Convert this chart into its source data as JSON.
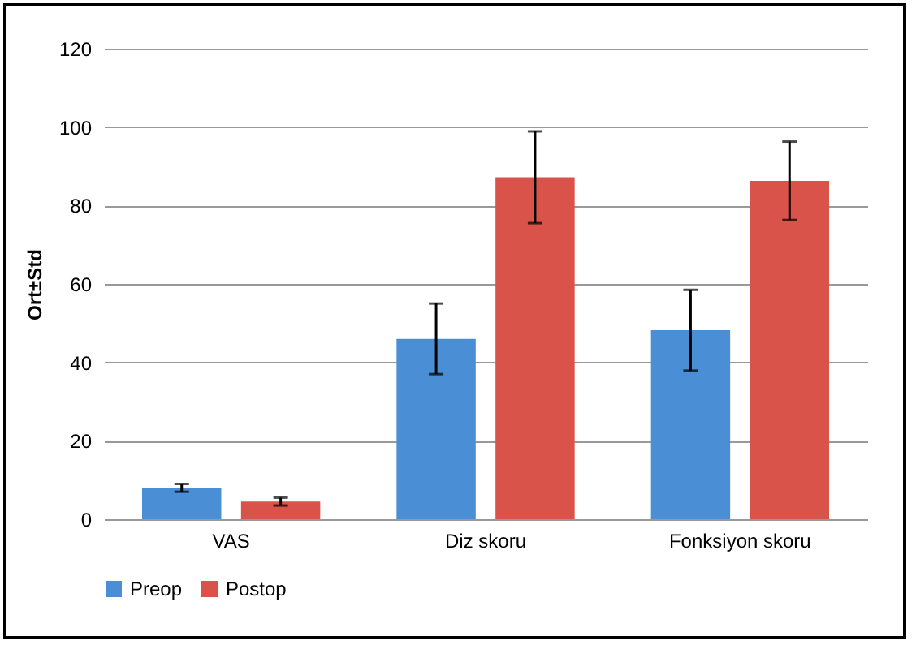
{
  "chart_data": {
    "type": "bar",
    "ylabel": "Ort±Std",
    "categories": [
      "VAS",
      "Diz skoru",
      "Fonksiyon skoru"
    ],
    "series": [
      {
        "name": "Preop",
        "color": "#4a8fd6",
        "values": [
          8,
          46,
          48.2
        ],
        "errors": [
          1,
          9,
          10.3
        ]
      },
      {
        "name": "Postop",
        "color": "#d9534a",
        "values": [
          4.5,
          87.2,
          86.3
        ],
        "errors": [
          1,
          11.7,
          10
        ]
      }
    ],
    "ylim": [
      0,
      120
    ],
    "yticks": [
      0,
      20,
      40,
      60,
      80,
      100,
      120
    ],
    "grid": "y",
    "legend": "bottom"
  }
}
